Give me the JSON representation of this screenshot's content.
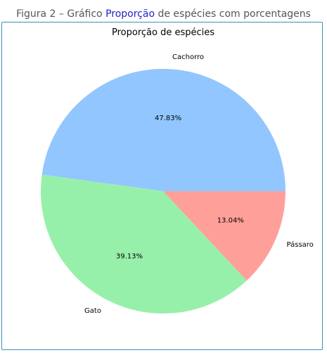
{
  "caption": {
    "prefix": "Figura 2 – Gráfico ",
    "highlight": "Proporção",
    "suffix": " de espécies com porcentagens"
  },
  "chart_data": {
    "type": "pie",
    "title": "Proporção de espécies",
    "categories": [
      "Cachorro",
      "Gato",
      "Pássaro"
    ],
    "values": [
      47.83,
      39.13,
      13.04
    ],
    "percent_labels": [
      "47.83%",
      "39.13%",
      "13.04%"
    ],
    "colors": [
      "#92c6ff",
      "#97f0aa",
      "#ff9f9a"
    ],
    "start_angle_deg": 0,
    "direction": "counterclockwise",
    "legend": "none"
  }
}
